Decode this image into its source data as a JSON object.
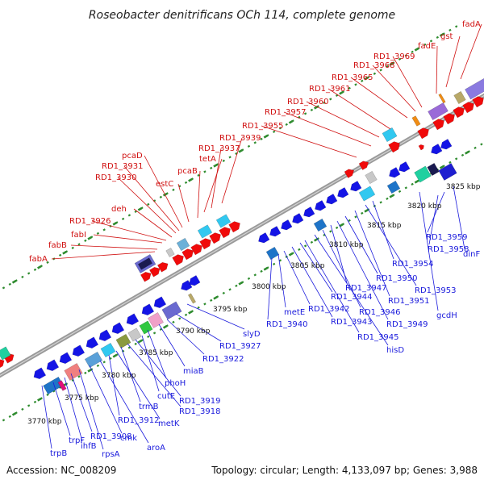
{
  "title": "Roseobacter denitrificans OCh 114, complete genome",
  "footer": {
    "accession": "Accession: NC_008209",
    "summary": "Topology: circular; Length: 4,133,097 bp; Genes: 3,988"
  },
  "colors": {
    "forward_label": "#d01010",
    "reverse_label": "#1a1adc",
    "backbone": "#8c8c8c",
    "tick": "#2f8c2f"
  },
  "kbp_ticks": [
    "3770 kbp",
    "3775 kbp",
    "3780 kbp",
    "3785 kbp",
    "3790 kbp",
    "3795 kbp",
    "3800 kbp",
    "3805 kbp",
    "3810 kbp",
    "3815 kbp",
    "3820 kbp",
    "3825 kbp"
  ],
  "forward_labels": [
    "fabA",
    "fabB",
    "fabI",
    "RD1_3926",
    "deh",
    "RD1_3930",
    "RD1_3931",
    "pcaD",
    "estC",
    "pcaB",
    "tetA",
    "RD1_3937",
    "RD1_3939",
    "RD1_3955",
    "RD1_3957",
    "RD1_3960",
    "RD1_3961",
    "RD1_3965",
    "RD1_3968",
    "RD1_3969",
    "fadE",
    "gst",
    "fadA"
  ],
  "reverse_labels": [
    "trpB",
    "trpF",
    "ihfB",
    "RD1_3908",
    "rpsA",
    "cmk",
    "aroA",
    "RD1_3912",
    "metK",
    "trmB",
    "RD1_3918",
    "RD1_3919",
    "cutE",
    "phoH",
    "miaB",
    "RD1_3922",
    "RD1_3927",
    "slyD",
    "RD1_3940",
    "metE",
    "RD1_3942",
    "RD1_3943",
    "RD1_3944",
    "RD1_3945",
    "hisD",
    "RD1_3946",
    "RD1_3947",
    "RD1_3949",
    "RD1_3950",
    "RD1_3951",
    "RD1_3953",
    "RD1_3954",
    "gcdH",
    "RD1_3958",
    "RD1_3959",
    "dinF"
  ]
}
